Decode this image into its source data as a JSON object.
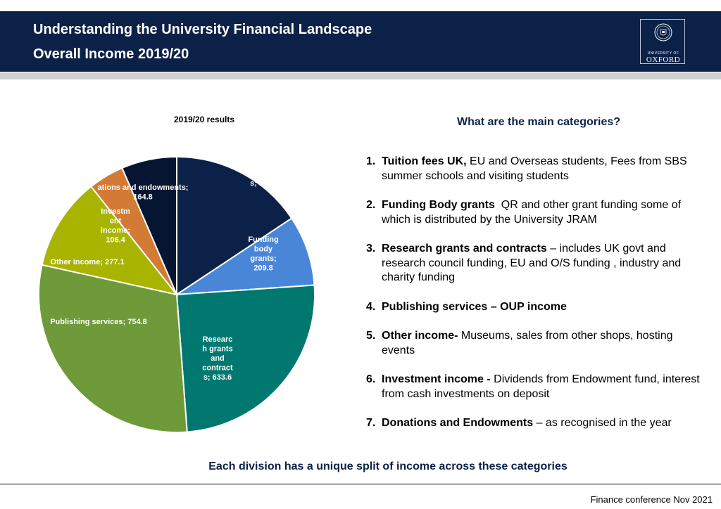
{
  "header": {
    "line1": "Understanding the University Financial Landscape",
    "line2": "Overall Income 2019/20",
    "logo_line1": "UNIVERSITY OF",
    "logo_line2": "OXFORD"
  },
  "chart_data": {
    "type": "pie",
    "title": "2019/20 results",
    "slices": [
      {
        "label": "Tuition fees",
        "display": "s;",
        "value": 398.7,
        "color": "#0b2147"
      },
      {
        "label": "Funding body grants",
        "display": "Funding body grants; 209.8",
        "value": 209.8,
        "color": "#4a86d8"
      },
      {
        "label": "Research grants and contracts",
        "display": "Researc h grants and contract s; 633.6",
        "value": 633.6,
        "color": "#007870"
      },
      {
        "label": "Publishing services",
        "display": "Publishing services; 754.8",
        "value": 754.8,
        "color": "#6e9a3a"
      },
      {
        "label": "Other income",
        "display": "Other income; 277.1",
        "value": 277.1,
        "color": "#a8b400"
      },
      {
        "label": "Investment income",
        "display": "Investm ent income; 106.4",
        "value": 106.4,
        "color": "#d37a36"
      },
      {
        "label": "Donations and endowments",
        "display": "ations and endowments; 164.8",
        "value": 164.8,
        "color": "#061632"
      }
    ]
  },
  "categories": {
    "title": "What are the main categories?",
    "items": [
      {
        "num": "1.",
        "bold": "Tuition fees UK,",
        "text": " EU and Overseas students, Fees from SBS summer schools and visiting students"
      },
      {
        "num": "2.",
        "bold": "Funding Body grants",
        "text": "  QR and other grant funding some of which is distributed by the University JRAM"
      },
      {
        "num": "3.",
        "bold": "Research grants and contracts",
        "text": " – includes UK govt and research council funding, EU and O/S funding , industry and charity funding"
      },
      {
        "num": "4.",
        "bold": "Publishing services – OUP income",
        "text": ""
      },
      {
        "num": "5.",
        "bold": "Other income-",
        "text": " Museums, sales from other shops, hosting events"
      },
      {
        "num": "6.",
        "bold": "Investment income -",
        "text": " Dividends from Endowment fund, interest from cash investments on deposit"
      },
      {
        "num": "7.",
        "bold": "Donations and Endowments",
        "text": " – as recognised in the year"
      }
    ]
  },
  "footer": {
    "message": "Each division has a unique split of income across these categories",
    "note": "Finance conference Nov 2021"
  }
}
